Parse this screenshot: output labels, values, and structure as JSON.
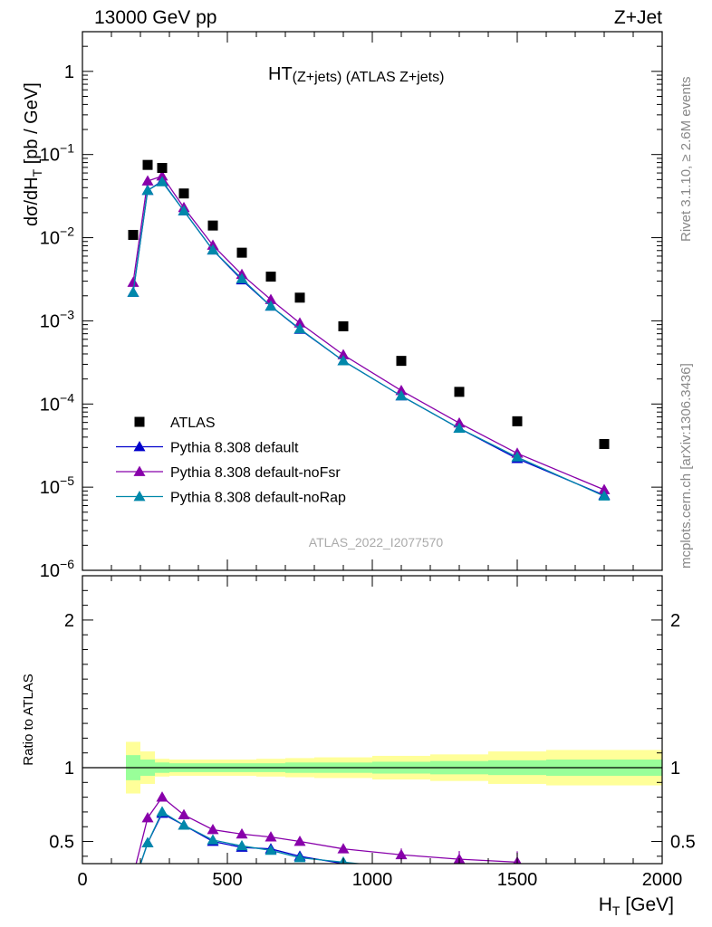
{
  "header": {
    "left": "13000 GeV pp",
    "right": "Z+Jet"
  },
  "side_text": {
    "rivet": "Rivet 3.1.10, ≥ 2.6M events",
    "mcplots": "mcplots.cern.ch [arXiv:1306.3436]"
  },
  "colors": {
    "atlas": "#000000",
    "default": "#0000cc",
    "noFsr": "#8800aa",
    "noRap": "#0088aa",
    "band_inner": "#99ff99",
    "band_outer": "#ffff99"
  },
  "chart_data": [
    {
      "type": "scatter",
      "title": "HT",
      "title_sub": "(Z+jets) (ATLAS Z+jets)",
      "ylabel_main": "dσ/dH",
      "ylabel_sub": "T",
      "ylabel_tail": " [pb / GeV]",
      "watermark": "ATLAS_2022_I2077570",
      "y_scale": "log",
      "xlim": [
        0,
        2000
      ],
      "ylim": [
        1e-06,
        3
      ],
      "y_ticks": [
        {
          "value": 1e-06,
          "base": "10",
          "exp": "−6"
        },
        {
          "value": 1e-05,
          "base": "10",
          "exp": "−5"
        },
        {
          "value": 0.0001,
          "base": "10",
          "exp": "−4"
        },
        {
          "value": 0.001,
          "base": "10",
          "exp": "−3"
        },
        {
          "value": 0.01,
          "base": "10",
          "exp": "−2"
        },
        {
          "value": 0.1,
          "base": "10",
          "exp": "−1"
        },
        {
          "value": 1,
          "base": "1",
          "exp": ""
        }
      ],
      "legend_position": "bottom-left",
      "x": [
        175,
        225,
        275,
        350,
        450,
        550,
        650,
        750,
        900,
        1100,
        1300,
        1500,
        1800
      ],
      "series": [
        {
          "name": "ATLAS",
          "marker": "square",
          "values": [
            0.0108,
            0.075,
            0.069,
            0.034,
            0.014,
            0.0066,
            0.0034,
            0.0019,
            0.00086,
            0.00033,
            0.00014,
            6.2e-05,
            3.3e-05
          ]
        },
        {
          "name": "Pythia 8.308 default",
          "marker": "triangle",
          "values": [
            0.0022,
            0.037,
            0.048,
            0.021,
            0.0071,
            0.0031,
            0.0015,
            0.00079,
            0.00033,
            0.000125,
            5.1e-05,
            2.2e-05,
            8e-06
          ]
        },
        {
          "name": "Pythia 8.308 default-noFsr",
          "marker": "triangle",
          "values": [
            0.0029,
            0.048,
            0.055,
            0.023,
            0.0081,
            0.0036,
            0.0018,
            0.00094,
            0.00039,
            0.000145,
            5.9e-05,
            2.55e-05,
            9.3e-06
          ]
        },
        {
          "name": "Pythia 8.308 default-noRap",
          "marker": "triangle",
          "values": [
            0.0022,
            0.037,
            0.047,
            0.021,
            0.0071,
            0.0032,
            0.0015,
            0.0008,
            0.00033,
            0.000125,
            5.1e-05,
            2.3e-05,
            7.8e-06
          ]
        }
      ]
    },
    {
      "type": "line",
      "ylabel": "Ratio to ATLAS",
      "xlabel_main": "H",
      "xlabel_sub": "T",
      "xlabel_tail": " [GeV]",
      "xlim": [
        0,
        2000
      ],
      "ylim": [
        0.35,
        2.3
      ],
      "x_ticks": [
        "0",
        "500",
        "1000",
        "1500",
        "2000"
      ],
      "y_ticks": [
        "0.5",
        "1",
        "2"
      ],
      "bin_edges": [
        150,
        200,
        250,
        300,
        400,
        500,
        600,
        700,
        800,
        1000,
        1200,
        1400,
        1600,
        2000
      ],
      "band_inner": [
        0.085,
        0.055,
        0.035,
        0.03,
        0.03,
        0.03,
        0.03,
        0.035,
        0.035,
        0.04,
        0.045,
        0.05,
        0.055
      ],
      "band_outer": [
        0.175,
        0.11,
        0.06,
        0.055,
        0.055,
        0.055,
        0.06,
        0.065,
        0.07,
        0.08,
        0.09,
        0.11,
        0.12
      ],
      "x": [
        175,
        225,
        275,
        350,
        450,
        550,
        650,
        750,
        900,
        1100,
        1300,
        1500
      ],
      "series": [
        {
          "name": "Pythia 8.308 default",
          "values": [
            0.2,
            0.49,
            0.69,
            0.61,
            0.5,
            0.46,
            0.45,
            0.4,
            0.35,
            0.32,
            0.32,
            0.32
          ]
        },
        {
          "name": "Pythia 8.308 default-noFsr",
          "values": [
            0.27,
            0.66,
            0.8,
            0.68,
            0.58,
            0.55,
            0.53,
            0.5,
            0.45,
            0.41,
            0.38,
            0.36
          ]
        },
        {
          "name": "Pythia 8.308 default-noRap",
          "values": [
            0.2,
            0.49,
            0.7,
            0.61,
            0.51,
            0.47,
            0.44,
            0.39,
            0.36,
            0.32,
            0.32,
            0.32
          ]
        }
      ]
    }
  ]
}
